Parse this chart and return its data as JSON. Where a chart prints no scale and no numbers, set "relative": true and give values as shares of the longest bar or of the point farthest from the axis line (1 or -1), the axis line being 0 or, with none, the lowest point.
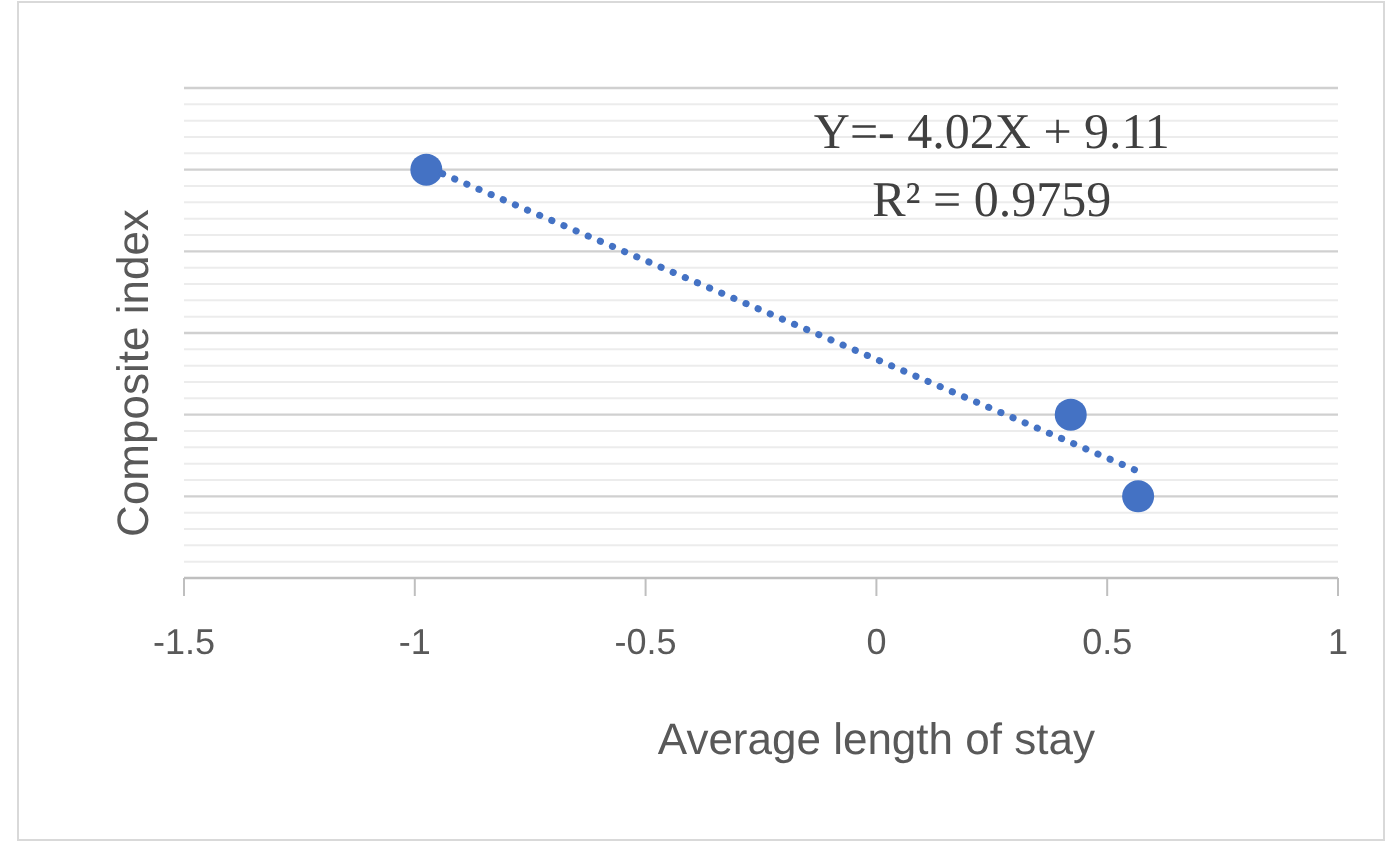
{
  "chart_data": {
    "type": "scatter",
    "xlabel": "Average length of stay",
    "ylabel": "Composite index",
    "relative": true,
    "xlim": [
      -1.5,
      1
    ],
    "xticks": [
      -1.5,
      -1,
      -0.5,
      0,
      0.5,
      1
    ],
    "grid": "y",
    "annotations": [
      "Y=- 4.02X + 9.11",
      "R² = 0.9759"
    ],
    "series": [
      {
        "color": "#4472c4",
        "marker": "circle",
        "x": [
          -0.975,
          0.421,
          0.567
        ],
        "values": [
          1,
          0.4,
          0.2
        ]
      },
      {
        "type": "line",
        "color": "#4472c4",
        "line_style": "dotted",
        "x": [
          -0.94,
          0.57
        ],
        "values": [
          0.99,
          0.26
        ]
      }
    ]
  }
}
